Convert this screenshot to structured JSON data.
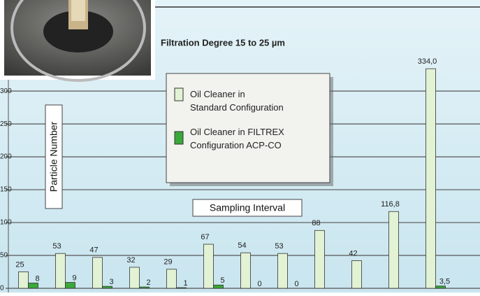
{
  "chart_data": {
    "type": "bar",
    "title": "Filtration Degree 15 to 25 µm",
    "x_label": "Sampling Interval",
    "y_label": "Particle Number",
    "categories": [
      null,
      null,
      null,
      null,
      null,
      null,
      null,
      null,
      null,
      null,
      null,
      null
    ],
    "series": [
      {
        "name": "Oil Cleaner in Standard Configuration",
        "color": "#e2f2d4",
        "values": [
          25,
          53,
          47,
          32,
          29,
          67,
          54,
          53,
          88,
          42,
          116.8,
          334.0
        ],
        "value_labels": [
          "25",
          "53",
          "47",
          "32",
          "29",
          "67",
          "54",
          "53",
          "88",
          "42",
          "116,8",
          "334,0"
        ]
      },
      {
        "name": "Oil Cleaner in FILTREX Configuration ACP-CO",
        "color": "#3aa83a",
        "values": [
          8,
          9,
          3,
          2,
          1,
          5,
          0,
          0,
          null,
          null,
          null,
          3.5
        ],
        "value_labels": [
          "8",
          "9",
          "3",
          "2",
          "1",
          "5",
          "0",
          "0",
          null,
          null,
          null,
          "3,5"
        ]
      }
    ],
    "ylim": [
      0,
      430
    ],
    "yticks": [
      0,
      50,
      100,
      150,
      200,
      250,
      300
    ],
    "grid": true
  }
}
